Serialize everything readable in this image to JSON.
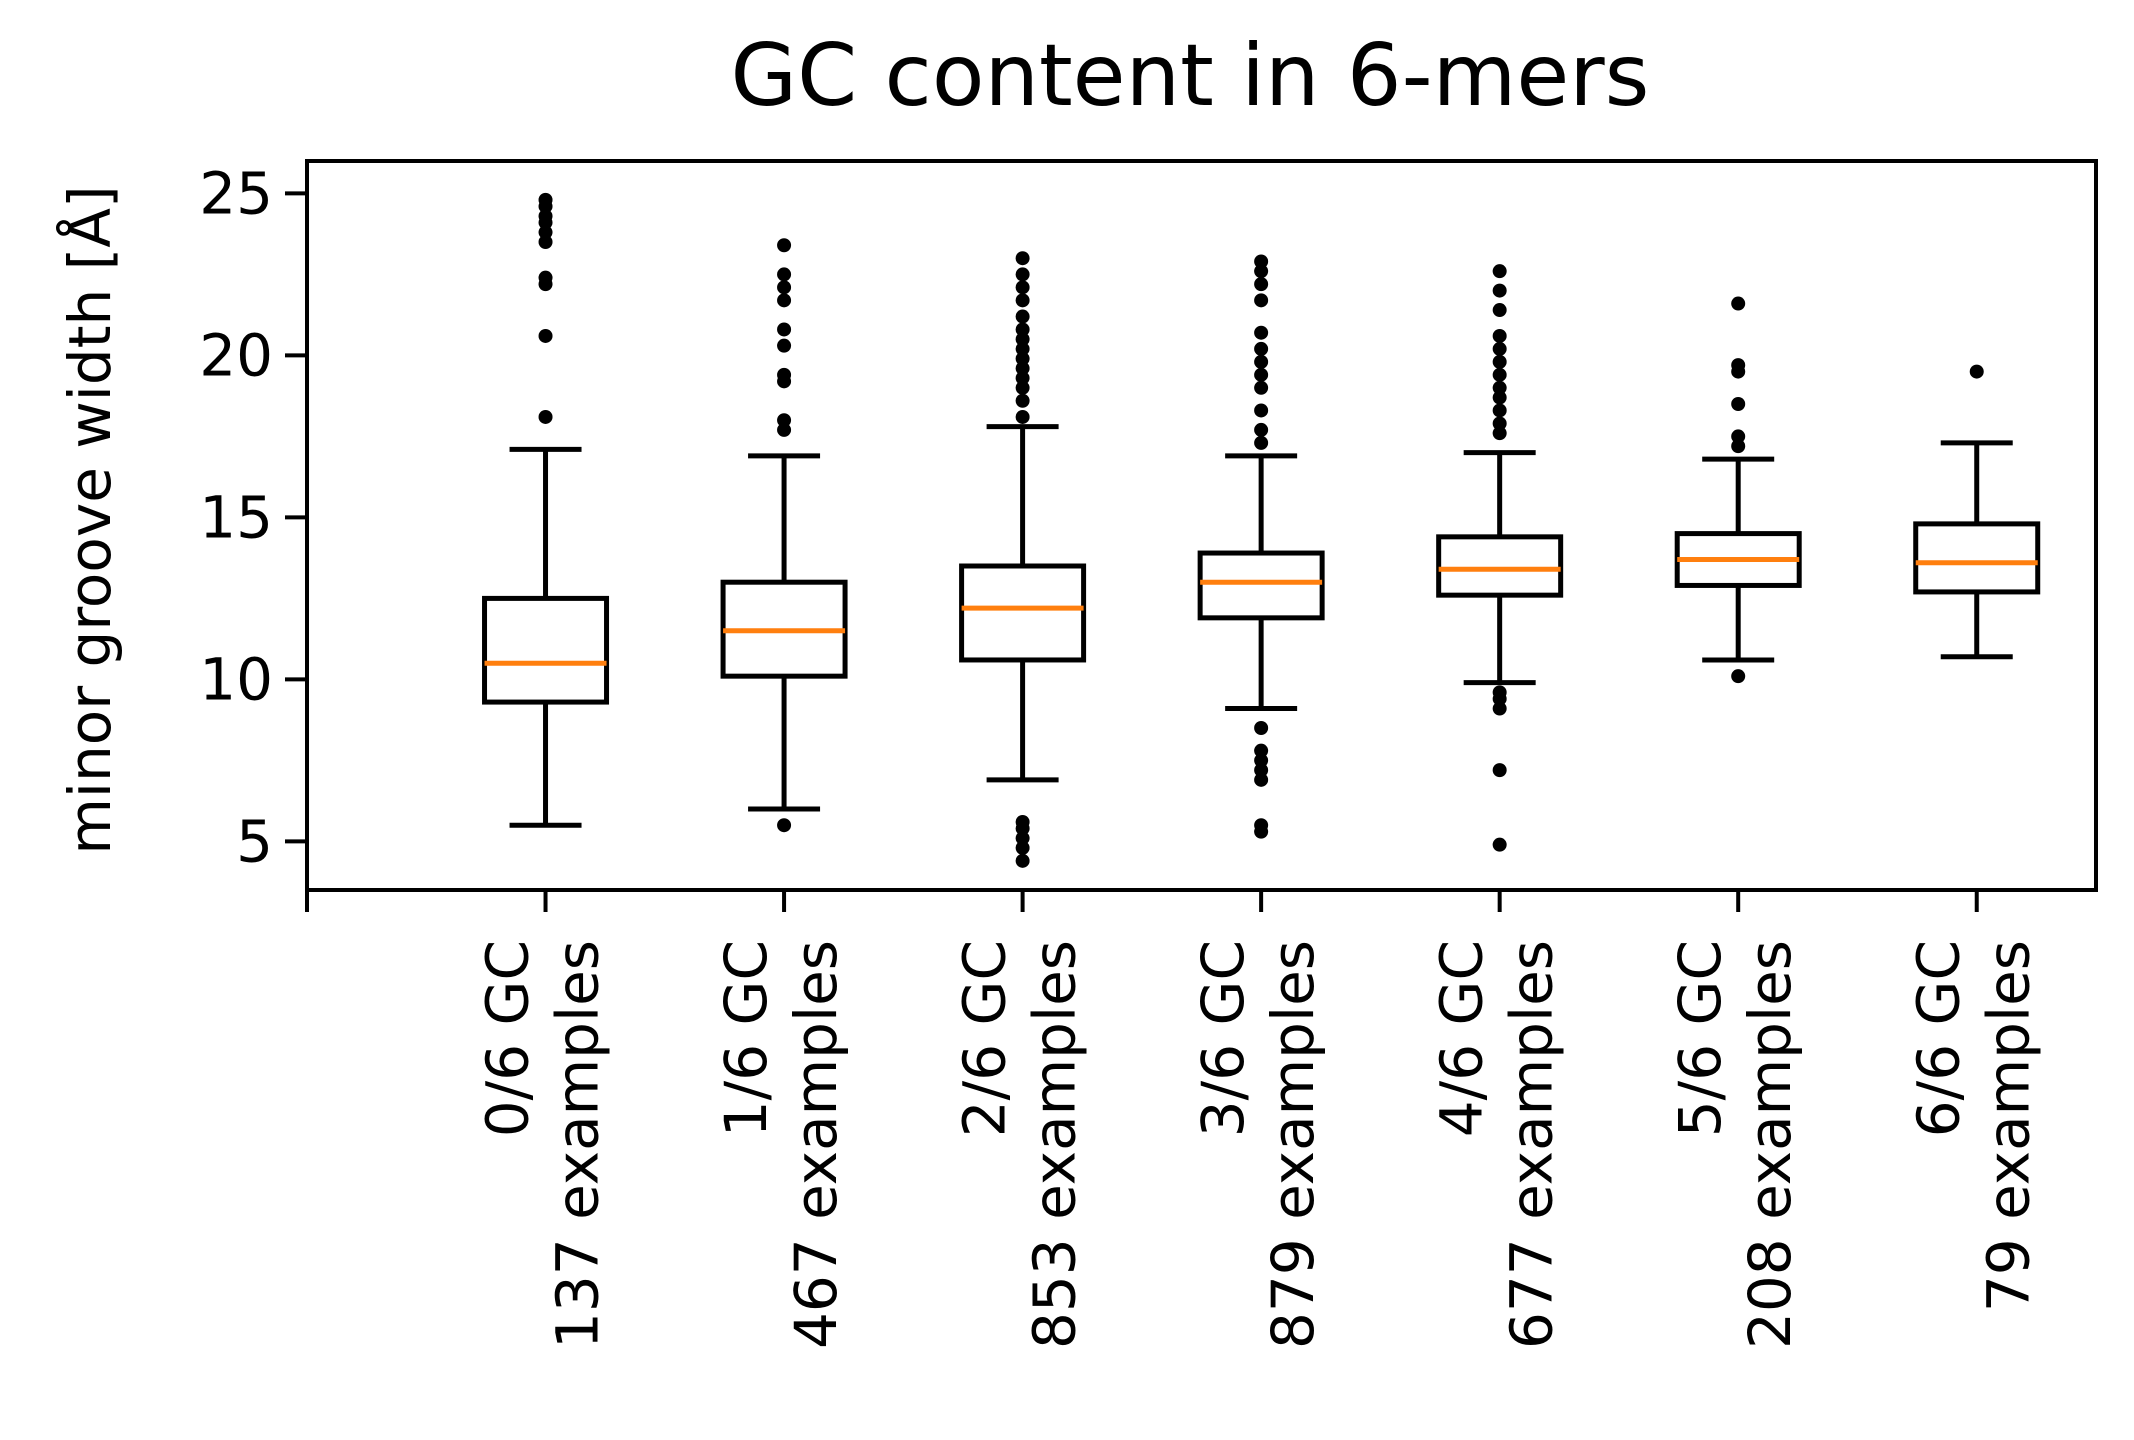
{
  "chart_data": {
    "type": "boxplot",
    "title": "GC content in 6-mers",
    "xlabel": "",
    "ylabel": "minor groove width [Å]",
    "ylim": [
      3.5,
      26.0
    ],
    "yticks": [
      5,
      10,
      15,
      20,
      25
    ],
    "colors": {
      "box": "#000000",
      "median": "#ff7f0e",
      "flier": "#000000"
    },
    "categories": [
      {
        "line1": "0/6 GC",
        "line2": "137 examples"
      },
      {
        "line1": "1/6 GC",
        "line2": "467 examples"
      },
      {
        "line1": "2/6 GC",
        "line2": "853 examples"
      },
      {
        "line1": "3/6 GC",
        "line2": "879 examples"
      },
      {
        "line1": "4/6 GC",
        "line2": "677 examples"
      },
      {
        "line1": "5/6 GC",
        "line2": "208 examples"
      },
      {
        "line1": "6/6 GC",
        "line2": "79 examples"
      }
    ],
    "boxes": [
      {
        "whislo": 5.5,
        "q1": 9.3,
        "med": 10.5,
        "q3": 12.5,
        "whishi": 17.1,
        "fliers": [
          18.1,
          20.6,
          22.2,
          22.4,
          23.5,
          23.8,
          24.1,
          24.3,
          24.6,
          24.8
        ]
      },
      {
        "whislo": 6.0,
        "q1": 10.1,
        "med": 11.5,
        "q3": 13.0,
        "whishi": 16.9,
        "fliers": [
          5.5,
          17.7,
          18.0,
          19.2,
          19.4,
          20.3,
          20.8,
          21.7,
          22.1,
          22.5,
          23.4
        ]
      },
      {
        "whislo": 6.9,
        "q1": 10.6,
        "med": 12.2,
        "q3": 13.5,
        "whishi": 17.8,
        "fliers": [
          4.4,
          4.8,
          5.1,
          5.4,
          5.6,
          18.1,
          18.6,
          19.0,
          19.3,
          19.6,
          19.9,
          20.2,
          20.5,
          20.8,
          21.2,
          21.7,
          22.1,
          22.5,
          23.0
        ]
      },
      {
        "whislo": 9.1,
        "q1": 11.9,
        "med": 13.0,
        "q3": 13.9,
        "whishi": 16.9,
        "fliers": [
          5.3,
          5.5,
          6.9,
          7.2,
          7.5,
          7.8,
          8.5,
          17.3,
          17.7,
          18.3,
          19.0,
          19.4,
          19.8,
          20.2,
          20.7,
          21.7,
          22.2,
          22.6,
          22.9
        ]
      },
      {
        "whislo": 9.9,
        "q1": 12.6,
        "med": 13.4,
        "q3": 14.4,
        "whishi": 17.0,
        "fliers": [
          4.9,
          7.2,
          9.1,
          9.4,
          9.6,
          17.6,
          17.9,
          18.3,
          18.7,
          19.0,
          19.4,
          19.8,
          20.2,
          20.6,
          21.4,
          22.0,
          22.6
        ]
      },
      {
        "whislo": 10.6,
        "q1": 12.9,
        "med": 13.7,
        "q3": 14.5,
        "whishi": 16.8,
        "fliers": [
          10.1,
          17.2,
          17.5,
          18.5,
          19.5,
          19.7,
          21.6
        ]
      },
      {
        "whislo": 10.7,
        "q1": 12.7,
        "med": 13.6,
        "q3": 14.8,
        "whishi": 17.3,
        "fliers": [
          19.5
        ]
      }
    ]
  }
}
